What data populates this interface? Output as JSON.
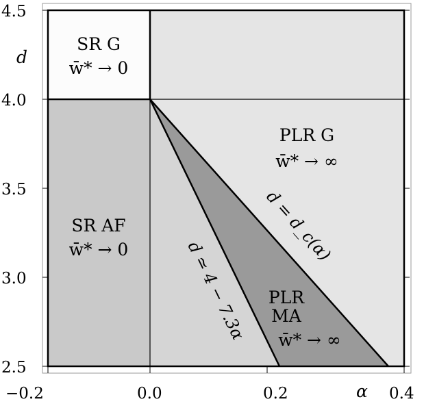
{
  "diagram": {
    "axes": {
      "x_name": "α",
      "y_name": "d",
      "x_ticks": [
        "−0.2",
        "0.0",
        "0.2",
        "0.4"
      ],
      "y_ticks": [
        "4.5",
        "4.0",
        "3.5",
        "3.0",
        "2.5"
      ]
    },
    "regions": {
      "sr_g": {
        "line1": "SR G",
        "line2": "w̄* → 0"
      },
      "plr_g": {
        "line1": "PLR G",
        "line2": "w̄* → ∞"
      },
      "sr_af": {
        "line1": "SR AF",
        "line2": "w̄* → 0"
      },
      "plr_ma": {
        "line1": "PLR",
        "line2": "MA",
        "line3": "w̄* → ∞"
      }
    },
    "curves": {
      "critical": "d = d_c(α)",
      "approx": "d ≃ 4 − 7.3α"
    },
    "colors": {
      "sr_g_fill": "#fcfcfc",
      "upper_right_fill": "#e5e5e5",
      "sr_af_fill": "#c9c9c9",
      "middle_fill": "#d5d5d5",
      "plr_ma_fill": "#9a9a9a",
      "plr_g_fill": "#e5e5e5"
    }
  }
}
